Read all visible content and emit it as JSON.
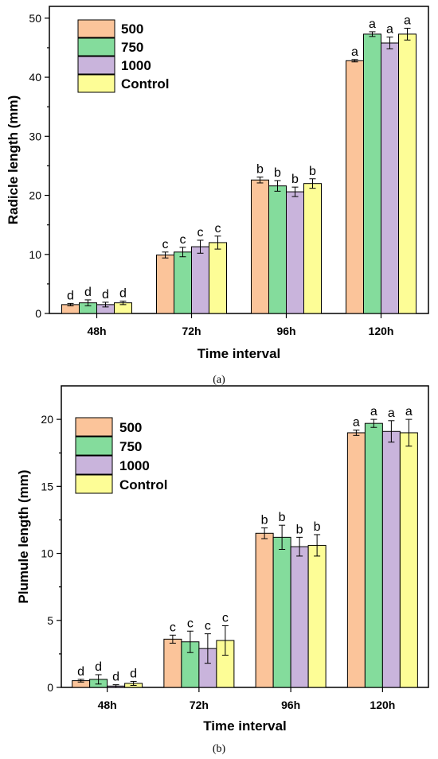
{
  "colors": {
    "500": "#fbc49a",
    "750": "#84dc9c",
    "1000": "#c9b4dc",
    "Control": "#fdfd96"
  },
  "chart_data": [
    {
      "type": "bar",
      "caption": "(a)",
      "xlabel": "Time interval",
      "ylabel": "Radicle length (mm)",
      "ylim": [
        0,
        52
      ],
      "yticks": [
        0,
        10,
        20,
        30,
        40,
        50
      ],
      "legend_position": "top-left",
      "grid": false,
      "categories": [
        "48h",
        "72h",
        "96h",
        "120h"
      ],
      "series": [
        {
          "name": "500",
          "values": [
            1.5,
            9.9,
            22.6,
            42.8
          ],
          "errors": [
            0.2,
            0.5,
            0.5,
            0.2
          ],
          "letters": [
            "d",
            "c",
            "b",
            "a"
          ]
        },
        {
          "name": "750",
          "values": [
            1.8,
            10.4,
            21.6,
            47.3
          ],
          "errors": [
            0.5,
            0.8,
            0.9,
            0.4
          ],
          "letters": [
            "d",
            "c",
            "b",
            "a"
          ]
        },
        {
          "name": "1000",
          "values": [
            1.5,
            11.3,
            20.6,
            45.8
          ],
          "errors": [
            0.4,
            1.1,
            0.8,
            1.0
          ],
          "letters": [
            "d",
            "c",
            "b",
            "a"
          ]
        },
        {
          "name": "Control",
          "values": [
            1.8,
            12.0,
            22.0,
            47.3
          ],
          "errors": [
            0.3,
            1.1,
            0.8,
            1.0
          ],
          "letters": [
            "d",
            "c",
            "b",
            "a"
          ]
        }
      ]
    },
    {
      "type": "bar",
      "caption": "(b)",
      "xlabel": "Time interval",
      "ylabel": "Plumule length (mm)",
      "ylim": [
        0,
        22.5
      ],
      "yticks": [
        0,
        5,
        10,
        15,
        20
      ],
      "legend_position": "top-left",
      "grid": false,
      "categories": [
        "48h",
        "72h",
        "96h",
        "120h"
      ],
      "series": [
        {
          "name": "500",
          "values": [
            0.5,
            3.6,
            11.5,
            19.0
          ],
          "errors": [
            0.1,
            0.3,
            0.4,
            0.2
          ],
          "letters": [
            "d",
            "c",
            "b",
            "a"
          ]
        },
        {
          "name": "750",
          "values": [
            0.6,
            3.4,
            11.2,
            19.7
          ],
          "errors": [
            0.35,
            0.8,
            0.9,
            0.3
          ],
          "letters": [
            "d",
            "c",
            "b",
            "a"
          ]
        },
        {
          "name": "1000",
          "values": [
            0.1,
            2.9,
            10.5,
            19.1
          ],
          "errors": [
            0.1,
            1.1,
            0.7,
            0.8
          ],
          "letters": [
            "d",
            "c",
            "b",
            "a"
          ]
        },
        {
          "name": "Control",
          "values": [
            0.3,
            3.5,
            10.6,
            19.0
          ],
          "errors": [
            0.15,
            1.1,
            0.8,
            1.0
          ],
          "letters": [
            "d",
            "c",
            "b",
            "a"
          ]
        }
      ]
    }
  ]
}
